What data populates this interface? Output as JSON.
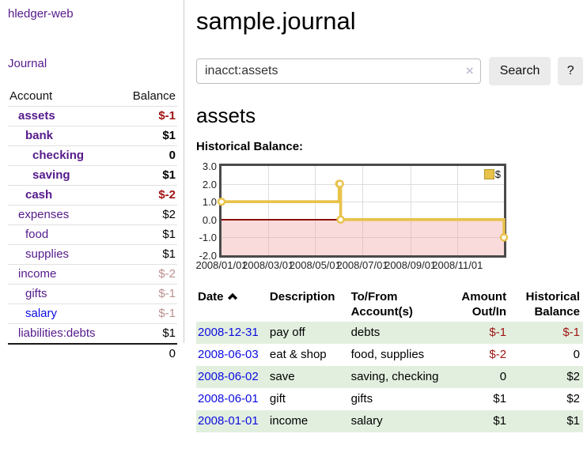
{
  "sidebar": {
    "app_title": "hledger-web",
    "journal_link": "Journal",
    "table": {
      "header": {
        "account": "Account",
        "balance": "Balance"
      },
      "items": [
        {
          "label": "assets",
          "balance": "$-1"
        },
        {
          "label": "bank",
          "balance": "$1"
        },
        {
          "label": "checking",
          "balance": "0"
        },
        {
          "label": "saving",
          "balance": "$1"
        },
        {
          "label": "cash",
          "balance": "$-2"
        },
        {
          "label": "expenses",
          "balance": "$2"
        },
        {
          "label": "food",
          "balance": "$1"
        },
        {
          "label": "supplies",
          "balance": "$1"
        },
        {
          "label": "income",
          "balance": "$-2"
        },
        {
          "label": "gifts",
          "balance": "$-1"
        },
        {
          "label": "salary",
          "balance": "$-1"
        },
        {
          "label": "liabilities:debts",
          "balance": "$1"
        }
      ],
      "total": "0"
    }
  },
  "main": {
    "title": "sample.journal",
    "search": {
      "value": "inacct:assets",
      "clear_icon": "×",
      "search_button": "Search",
      "help_button": "?"
    },
    "account_heading": "assets",
    "chart_label": "Historical Balance:"
  },
  "chart_data": {
    "type": "line",
    "step": true,
    "title": "Historical Balance:",
    "series": [
      {
        "name": "$",
        "points": [
          [
            "2008-01-01",
            1
          ],
          [
            "2008-06-01",
            2
          ],
          [
            "2008-06-02",
            2
          ],
          [
            "2008-06-03",
            0
          ],
          [
            "2008-12-31",
            -1
          ]
        ]
      }
    ],
    "xlim": [
      "2008-01-01",
      "2008-12-31"
    ],
    "ylim": [
      -2,
      3
    ],
    "yticks": [
      "3.0",
      "2.0",
      "1.0",
      "0.0",
      "-1.0",
      "-2.0"
    ],
    "xticks": [
      "2008/01/01",
      "2008/03/01",
      "2008/05/01",
      "2008/07/01",
      "2008/09/01",
      "2008/11/01"
    ],
    "legend": {
      "label": "$",
      "position": "top-right"
    },
    "grid": true,
    "colors": {
      "line": "#e8c24a",
      "marker_fill": "#fffdf5",
      "negative_fill": "#f6d4d4",
      "zero_line": "#8c0a0a"
    }
  },
  "register": {
    "headers": {
      "date": "Date",
      "description": "Description",
      "accounts": "To/From Account(s)",
      "amount": "Amount Out/In",
      "balance": "Historical Balance"
    },
    "rows": [
      {
        "date": "2008-12-31",
        "description": "pay off",
        "accounts": "debts",
        "amount": "$-1",
        "balance": "$-1"
      },
      {
        "date": "2008-06-03",
        "description": "eat & shop",
        "accounts": "food, supplies",
        "amount": "$-2",
        "balance": "0"
      },
      {
        "date": "2008-06-02",
        "description": "save",
        "accounts": "saving, checking",
        "amount": "0",
        "balance": "$2"
      },
      {
        "date": "2008-06-01",
        "description": "gift",
        "accounts": "gifts",
        "amount": "$1",
        "balance": "$2"
      },
      {
        "date": "2008-01-01",
        "description": "income",
        "accounts": "salary",
        "amount": "$1",
        "balance": "$1"
      }
    ]
  }
}
